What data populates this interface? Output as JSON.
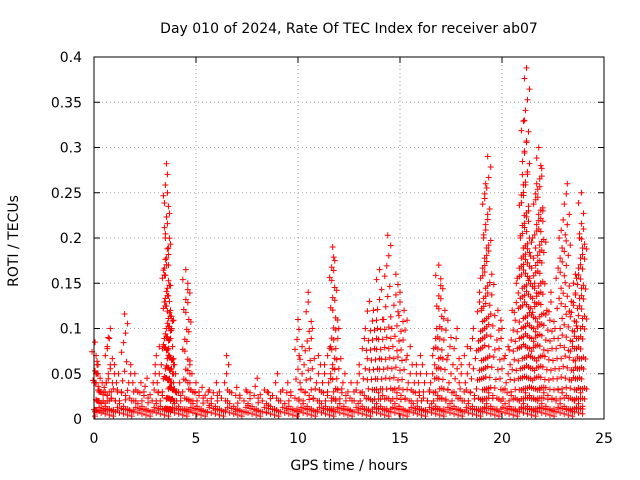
{
  "chart_data": {
    "type": "scatter",
    "title": "Day 010 of 2024, Rate Of TEC Index for receiver ab07",
    "xlabel": "GPS time / hours",
    "ylabel": "ROTI / TECUs",
    "xlim": [
      0,
      25
    ],
    "ylim": [
      0,
      0.4
    ],
    "xticks": [
      0,
      5,
      10,
      15,
      20,
      25
    ],
    "yticks": [
      0,
      0.05,
      0.1,
      0.15,
      0.2,
      0.25,
      0.3,
      0.35,
      0.4
    ],
    "xtick_labels": [
      "0",
      "5",
      "10",
      "15",
      "20",
      "25"
    ],
    "ytick_labels": [
      "0",
      "0.05",
      "0.1",
      "0.15",
      "0.2",
      "0.25",
      "0.3",
      "0.35",
      "0.4"
    ],
    "grid": true,
    "marker": "plus",
    "color": "#ff0000",
    "series": [
      {
        "x": [
          0.05,
          0.1,
          0.15,
          0.2,
          0.3,
          0.4,
          0.5,
          0.6,
          0.7,
          0.8,
          1.0,
          1.2,
          1.5,
          1.8,
          2.0,
          2.3,
          2.6,
          3.0,
          3.2,
          3.5,
          3.55,
          3.6,
          3.65,
          3.7,
          3.75,
          3.8,
          3.85,
          3.9,
          4.0,
          4.2,
          4.5,
          4.6,
          4.7,
          4.8,
          5.0,
          5.3,
          5.6,
          6.0,
          6.5,
          7.0,
          7.5,
          8.0,
          8.5,
          9.0,
          9.5,
          10.0,
          10.2,
          10.5,
          10.7,
          11.0,
          11.3,
          11.6,
          11.7,
          11.8,
          12.0,
          12.3,
          12.6,
          13.0,
          13.3,
          13.5,
          13.7,
          13.9,
          14.0,
          14.2,
          14.4,
          14.6,
          14.8,
          15.0,
          15.2,
          15.5,
          15.8,
          16.0,
          16.3,
          16.6,
          16.8,
          16.9,
          17.0,
          17.2,
          17.5,
          17.8,
          18.0,
          18.3,
          18.6,
          18.9,
          19.0,
          19.1,
          19.2,
          19.3,
          19.5,
          19.8,
          20.0,
          20.3,
          20.5,
          20.7,
          20.9,
          21.0,
          21.1,
          21.2,
          21.3,
          21.4,
          21.5,
          21.6,
          21.7,
          21.8,
          21.9,
          22.0,
          22.2,
          22.4,
          22.6,
          22.8,
          23.0,
          23.2,
          23.4,
          23.5,
          23.6,
          23.7,
          23.8,
          23.9,
          24.0
        ],
        "y": [
          0.085,
          0.07,
          0.06,
          0.05,
          0.045,
          0.04,
          0.035,
          0.04,
          0.09,
          0.1,
          0.06,
          0.05,
          0.116,
          0.06,
          0.05,
          0.04,
          0.045,
          0.06,
          0.08,
          0.2,
          0.282,
          0.25,
          0.17,
          0.13,
          0.12,
          0.1,
          0.08,
          0.06,
          0.05,
          0.04,
          0.165,
          0.15,
          0.06,
          0.05,
          0.04,
          0.035,
          0.03,
          0.04,
          0.07,
          0.035,
          0.03,
          0.045,
          0.03,
          0.05,
          0.04,
          0.11,
          0.08,
          0.14,
          0.1,
          0.07,
          0.06,
          0.08,
          0.19,
          0.175,
          0.1,
          0.05,
          0.04,
          0.06,
          0.1,
          0.13,
          0.12,
          0.1,
          0.165,
          0.11,
          0.203,
          0.1,
          0.16,
          0.14,
          0.12,
          0.08,
          0.06,
          0.07,
          0.05,
          0.07,
          0.1,
          0.17,
          0.155,
          0.12,
          0.09,
          0.1,
          0.06,
          0.08,
          0.1,
          0.14,
          0.12,
          0.2,
          0.26,
          0.29,
          0.16,
          0.12,
          0.1,
          0.08,
          0.12,
          0.15,
          0.2,
          0.27,
          0.33,
          0.388,
          0.23,
          0.18,
          0.2,
          0.15,
          0.26,
          0.3,
          0.28,
          0.23,
          0.12,
          0.14,
          0.1,
          0.2,
          0.22,
          0.26,
          0.13,
          0.15,
          0.16,
          0.1,
          0.2,
          0.25,
          0.21
        ]
      }
    ]
  }
}
